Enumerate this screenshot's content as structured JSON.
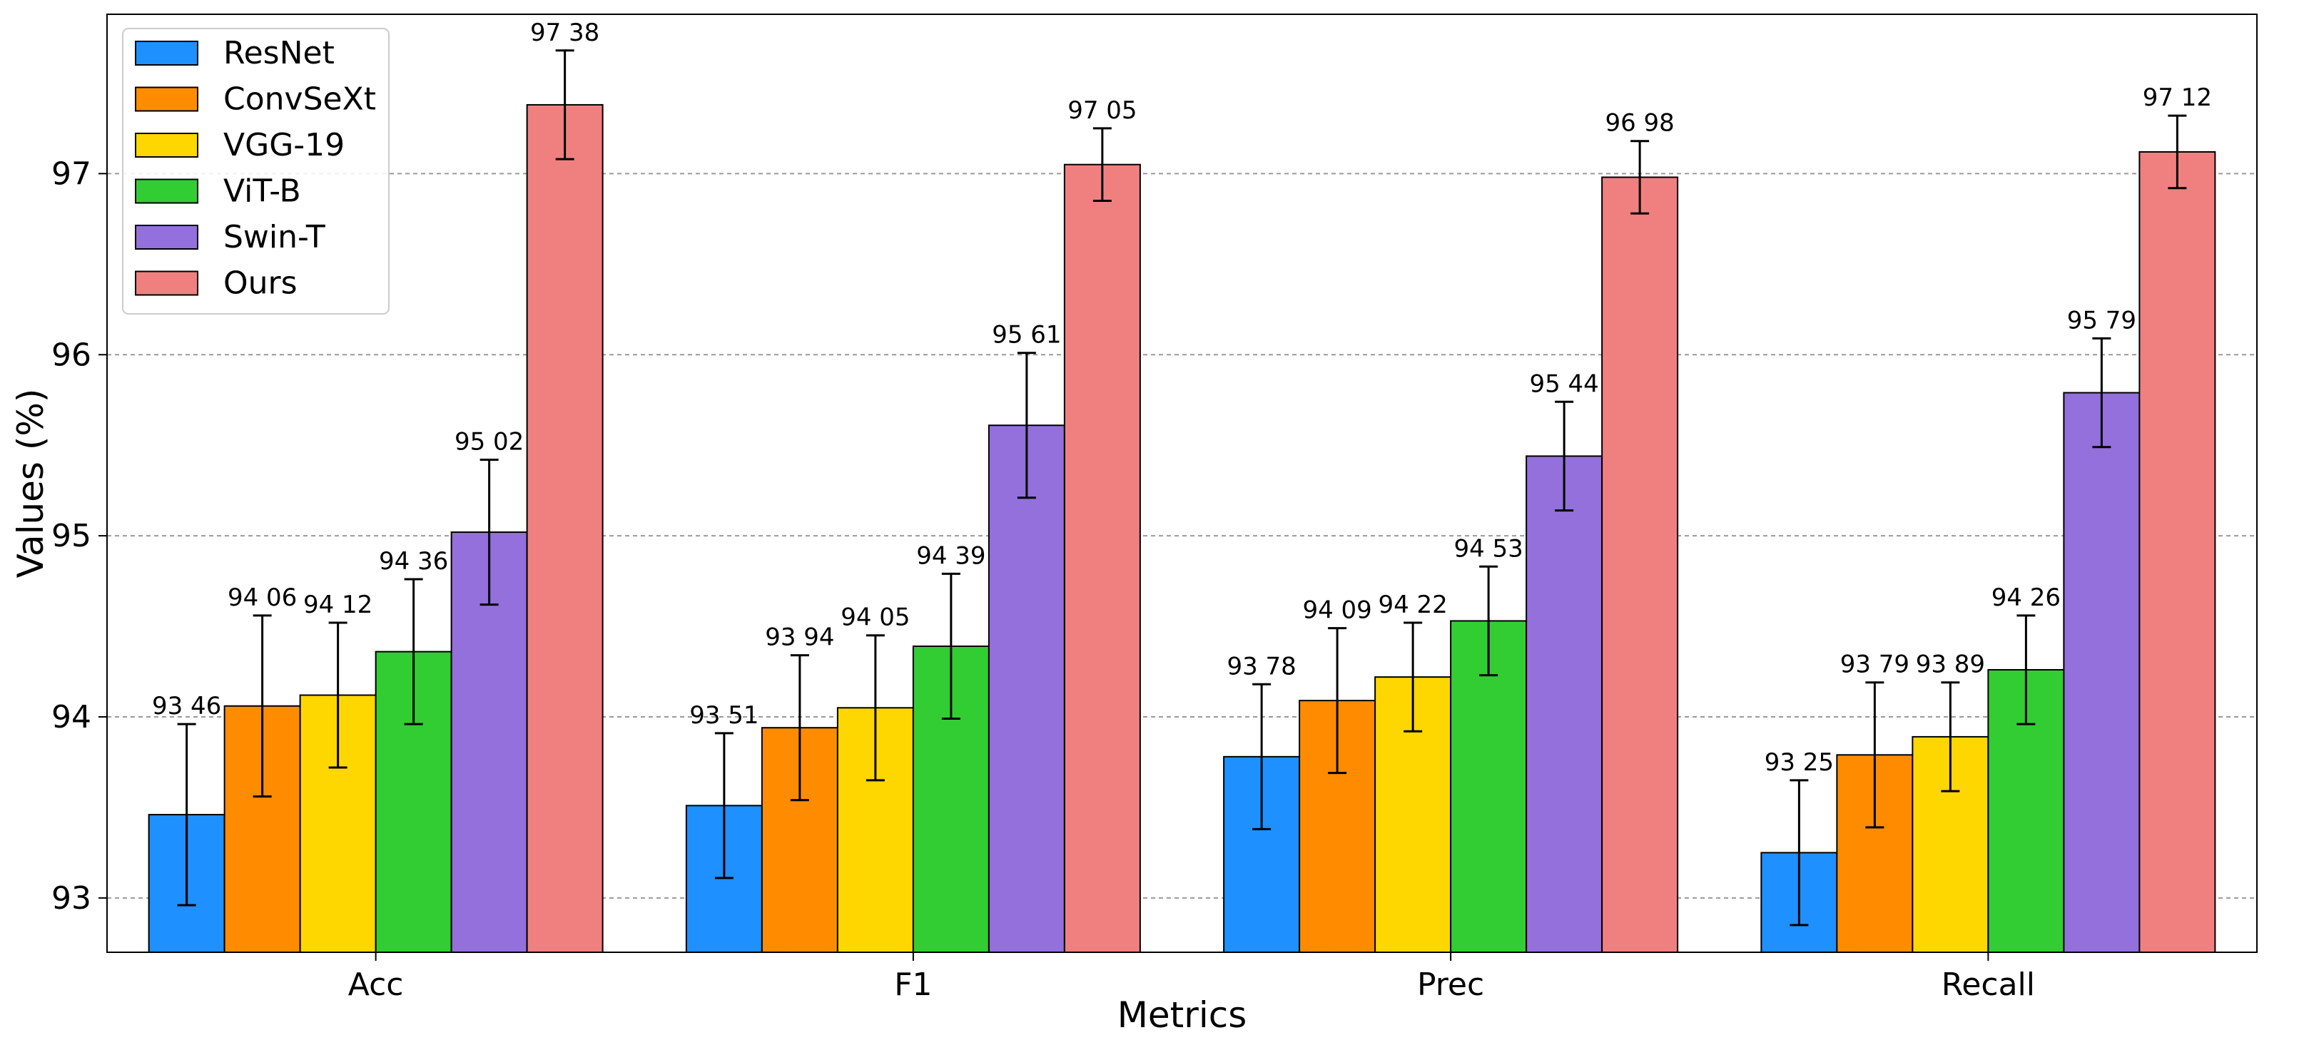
{
  "chart_data": {
    "type": "bar",
    "title": "",
    "xlabel": "Metrics",
    "ylabel": "Values (%)",
    "ylim": [
      92.7,
      97.88
    ],
    "yticks": [
      93,
      94,
      95,
      96,
      97
    ],
    "grid": "y",
    "legend_position": "top-left",
    "categories": [
      "Acc",
      "F1",
      "Prec",
      "Recall"
    ],
    "series": [
      {
        "name": "ResNet",
        "color": "#1E90FF",
        "values": [
          93.46,
          93.51,
          93.78,
          93.25
        ],
        "errors": [
          0.5,
          0.4,
          0.4,
          0.4
        ]
      },
      {
        "name": "ConvSeXt",
        "color": "#FF8C00",
        "values": [
          94.06,
          93.94,
          94.09,
          93.79
        ],
        "errors": [
          0.5,
          0.4,
          0.4,
          0.4
        ]
      },
      {
        "name": "VGG-19",
        "color": "#FFD700",
        "values": [
          94.12,
          94.05,
          94.22,
          93.89
        ],
        "errors": [
          0.4,
          0.4,
          0.3,
          0.3
        ]
      },
      {
        "name": "ViT-B",
        "color": "#32CD32",
        "values": [
          94.36,
          94.39,
          94.53,
          94.26
        ],
        "errors": [
          0.4,
          0.4,
          0.3,
          0.3
        ]
      },
      {
        "name": "Swin-T",
        "color": "#9370DB",
        "values": [
          95.02,
          95.61,
          95.44,
          95.79
        ],
        "errors": [
          0.4,
          0.4,
          0.3,
          0.3
        ]
      },
      {
        "name": "Ours",
        "color": "#F08080",
        "values": [
          97.38,
          97.05,
          96.98,
          97.12
        ],
        "errors": [
          0.3,
          0.2,
          0.2,
          0.2
        ]
      }
    ],
    "value_labels": [
      [
        "93 46",
        "93 51",
        "93 78",
        "93 25"
      ],
      [
        "94 06",
        "93 94",
        "94 09",
        "93 79"
      ],
      [
        "94 12",
        "94 05",
        "94 22",
        "93 89"
      ],
      [
        "94 36",
        "94 39",
        "94 53",
        "94 26"
      ],
      [
        "95 02",
        "95 61",
        "95 44",
        "95 79"
      ],
      [
        "97 38",
        "97 05",
        "96 98",
        "97 12"
      ]
    ]
  }
}
